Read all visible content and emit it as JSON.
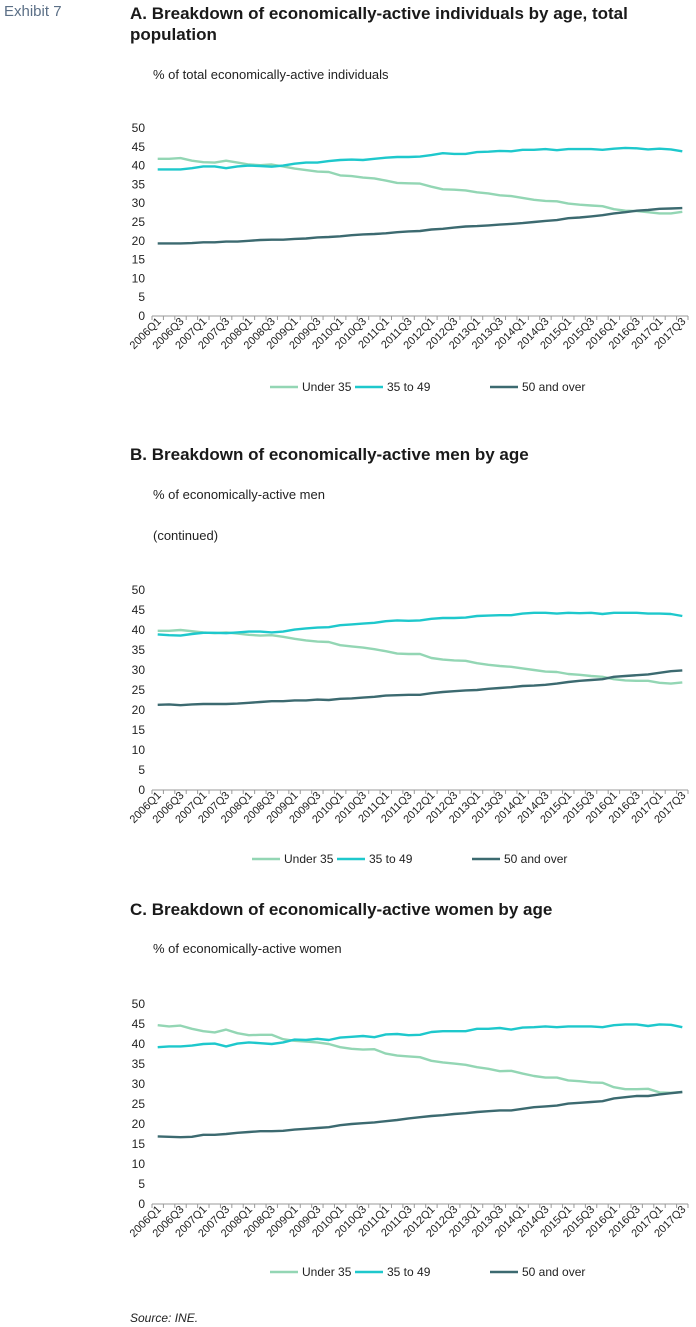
{
  "exhibit_label": "Exhibit 7",
  "source": "Source: INE.",
  "colors": {
    "under35": "#93d6b4",
    "age35_49": "#1ec8cc",
    "over50": "#3c6a70",
    "axis": "#999999"
  },
  "panels": [
    {
      "title_line1": "A. Breakdown of economically-active individuals by age, total",
      "title_line2": "population",
      "subtitle": "% of total economically-active individuals",
      "note": ""
    },
    {
      "title_line1": "B. Breakdown of economically-active men by age",
      "title_line2": "",
      "subtitle": "% of economically-active men",
      "note": "(continued)"
    },
    {
      "title_line1": "C. Breakdown of economically-active women by age",
      "title_line2": "",
      "subtitle": "% of economically-active women",
      "note": ""
    }
  ],
  "chart_data": [
    {
      "type": "line",
      "title": "A. Breakdown of economically-active individuals by age, total population",
      "ylabel": "% of total economically-active individuals",
      "ylim": [
        0,
        50
      ],
      "yticks": [
        0,
        5,
        10,
        15,
        20,
        25,
        30,
        35,
        40,
        45,
        50
      ],
      "x": [
        "2006Q1",
        "2006Q2",
        "2006Q3",
        "2006Q4",
        "2007Q1",
        "2007Q2",
        "2007Q3",
        "2007Q4",
        "2008Q1",
        "2008Q2",
        "2008Q3",
        "2008Q4",
        "2009Q1",
        "2009Q2",
        "2009Q3",
        "2009Q4",
        "2010Q1",
        "2010Q2",
        "2010Q3",
        "2010Q4",
        "2011Q1",
        "2011Q2",
        "2011Q3",
        "2011Q4",
        "2012Q1",
        "2012Q2",
        "2012Q3",
        "2012Q4",
        "2013Q1",
        "2013Q2",
        "2013Q3",
        "2013Q4",
        "2014Q1",
        "2014Q2",
        "2014Q3",
        "2014Q4",
        "2015Q1",
        "2015Q2",
        "2015Q3",
        "2015Q4",
        "2016Q1",
        "2016Q2",
        "2016Q3",
        "2016Q4",
        "2017Q1",
        "2017Q2",
        "2017Q3"
      ],
      "xticklabels": [
        "2006Q1",
        "2006Q3",
        "2007Q1",
        "2007Q3",
        "2008Q1",
        "2008Q3",
        "2009Q1",
        "2009Q3",
        "2010Q1",
        "2010Q3",
        "2011Q1",
        "2011Q3",
        "2012Q1",
        "2012Q3",
        "2013Q1",
        "2013Q3",
        "2014Q1",
        "2014Q3",
        "2015Q1",
        "2015Q3",
        "2016Q1",
        "2016Q3",
        "2017Q1",
        "2017Q3"
      ],
      "legend_position": "bottom",
      "series": [
        {
          "name": "Under 35",
          "color": "#93d6b4",
          "values": [
            41.8,
            41.8,
            42.0,
            41.3,
            40.9,
            40.8,
            41.3,
            40.8,
            40.3,
            40.1,
            40.3,
            39.8,
            39.2,
            38.8,
            38.4,
            38.3,
            37.4,
            37.2,
            36.8,
            36.6,
            36.0,
            35.4,
            35.3,
            35.2,
            34.4,
            33.7,
            33.6,
            33.4,
            32.9,
            32.6,
            32.1,
            31.9,
            31.4,
            30.9,
            30.6,
            30.5,
            29.9,
            29.6,
            29.4,
            29.2,
            28.4,
            28.0,
            27.9,
            27.6,
            27.3,
            27.3,
            27.7
          ]
        },
        {
          "name": "35 to 49",
          "color": "#1ec8cc",
          "values": [
            39.0,
            39.0,
            39.0,
            39.3,
            39.8,
            39.8,
            39.3,
            39.8,
            40.0,
            39.9,
            39.7,
            40.0,
            40.5,
            40.8,
            40.8,
            41.2,
            41.5,
            41.6,
            41.5,
            41.8,
            42.1,
            42.3,
            42.3,
            42.4,
            42.8,
            43.3,
            43.1,
            43.1,
            43.6,
            43.7,
            43.9,
            43.8,
            44.2,
            44.2,
            44.4,
            44.1,
            44.4,
            44.4,
            44.4,
            44.2,
            44.5,
            44.7,
            44.6,
            44.3,
            44.5,
            44.3,
            43.8
          ]
        },
        {
          "name": "50 and over",
          "color": "#3c6a70",
          "values": [
            19.3,
            19.3,
            19.3,
            19.4,
            19.6,
            19.6,
            19.8,
            19.8,
            20.0,
            20.2,
            20.3,
            20.3,
            20.5,
            20.6,
            20.9,
            21.0,
            21.2,
            21.5,
            21.7,
            21.8,
            22.0,
            22.3,
            22.5,
            22.6,
            23.0,
            23.2,
            23.5,
            23.8,
            23.9,
            24.1,
            24.3,
            24.5,
            24.7,
            25.0,
            25.3,
            25.5,
            26.0,
            26.2,
            26.5,
            26.8,
            27.3,
            27.6,
            28.0,
            28.2,
            28.5,
            28.6,
            28.7
          ]
        }
      ]
    },
    {
      "type": "line",
      "title": "B. Breakdown of economically-active men by age",
      "ylabel": "% of economically-active men",
      "ylim": [
        0,
        50
      ],
      "yticks": [
        0,
        5,
        10,
        15,
        20,
        25,
        30,
        35,
        40,
        45,
        50
      ],
      "x": [
        "2006Q1",
        "2006Q2",
        "2006Q3",
        "2006Q4",
        "2007Q1",
        "2007Q2",
        "2007Q3",
        "2007Q4",
        "2008Q1",
        "2008Q2",
        "2008Q3",
        "2008Q4",
        "2009Q1",
        "2009Q2",
        "2009Q3",
        "2009Q4",
        "2010Q1",
        "2010Q2",
        "2010Q3",
        "2010Q4",
        "2011Q1",
        "2011Q2",
        "2011Q3",
        "2011Q4",
        "2012Q1",
        "2012Q2",
        "2012Q3",
        "2012Q4",
        "2013Q1",
        "2013Q2",
        "2013Q3",
        "2013Q4",
        "2014Q1",
        "2014Q2",
        "2014Q3",
        "2014Q4",
        "2015Q1",
        "2015Q2",
        "2015Q3",
        "2015Q4",
        "2016Q1",
        "2016Q2",
        "2016Q3",
        "2016Q4",
        "2017Q1",
        "2017Q2",
        "2017Q3"
      ],
      "xticklabels": [
        "2006Q1",
        "2006Q3",
        "2007Q1",
        "2007Q3",
        "2008Q1",
        "2008Q3",
        "2009Q1",
        "2009Q3",
        "2010Q1",
        "2010Q3",
        "2011Q1",
        "2011Q3",
        "2012Q1",
        "2012Q3",
        "2013Q1",
        "2013Q3",
        "2014Q1",
        "2014Q3",
        "2015Q1",
        "2015Q3",
        "2016Q1",
        "2016Q3",
        "2017Q1",
        "2017Q3"
      ],
      "legend_position": "bottom",
      "series": [
        {
          "name": "Under 35",
          "color": "#93d6b4",
          "values": [
            39.8,
            39.8,
            40.0,
            39.7,
            39.4,
            39.2,
            39.4,
            39.1,
            38.8,
            38.6,
            38.7,
            38.3,
            37.8,
            37.4,
            37.1,
            37.0,
            36.2,
            35.9,
            35.6,
            35.2,
            34.7,
            34.1,
            34.0,
            34.0,
            33.0,
            32.6,
            32.4,
            32.3,
            31.7,
            31.3,
            31.0,
            30.8,
            30.4,
            30.0,
            29.6,
            29.5,
            29.0,
            28.8,
            28.5,
            28.3,
            27.7,
            27.4,
            27.3,
            27.3,
            26.8,
            26.6,
            26.9
          ]
        },
        {
          "name": "35 to 49",
          "color": "#1ec8cc",
          "values": [
            38.9,
            38.7,
            38.6,
            39.0,
            39.3,
            39.3,
            39.2,
            39.4,
            39.6,
            39.6,
            39.4,
            39.6,
            40.1,
            40.4,
            40.6,
            40.7,
            41.2,
            41.4,
            41.6,
            41.8,
            42.2,
            42.4,
            42.3,
            42.4,
            42.8,
            43.0,
            43.0,
            43.1,
            43.5,
            43.6,
            43.7,
            43.7,
            44.1,
            44.3,
            44.3,
            44.1,
            44.3,
            44.2,
            44.3,
            44.0,
            44.3,
            44.3,
            44.3,
            44.1,
            44.1,
            44.0,
            43.5
          ]
        },
        {
          "name": "50 and over",
          "color": "#3c6a70",
          "values": [
            21.3,
            21.4,
            21.2,
            21.4,
            21.5,
            21.5,
            21.5,
            21.6,
            21.8,
            22.0,
            22.2,
            22.2,
            22.4,
            22.4,
            22.6,
            22.5,
            22.8,
            22.9,
            23.1,
            23.3,
            23.6,
            23.7,
            23.8,
            23.8,
            24.2,
            24.5,
            24.7,
            24.9,
            25.0,
            25.3,
            25.5,
            25.7,
            26.0,
            26.1,
            26.3,
            26.6,
            27.0,
            27.3,
            27.5,
            27.7,
            28.3,
            28.5,
            28.7,
            28.9,
            29.3,
            29.7,
            29.9
          ]
        }
      ]
    },
    {
      "type": "line",
      "title": "C. Breakdown of economically-active women by age",
      "ylabel": "% of economically-active women",
      "ylim": [
        0,
        50
      ],
      "yticks": [
        0,
        5,
        10,
        15,
        20,
        25,
        30,
        35,
        40,
        45,
        50
      ],
      "x": [
        "2006Q1",
        "2006Q2",
        "2006Q3",
        "2006Q4",
        "2007Q1",
        "2007Q2",
        "2007Q3",
        "2007Q4",
        "2008Q1",
        "2008Q2",
        "2008Q3",
        "2008Q4",
        "2009Q1",
        "2009Q2",
        "2009Q3",
        "2009Q4",
        "2010Q1",
        "2010Q2",
        "2010Q3",
        "2010Q4",
        "2011Q1",
        "2011Q2",
        "2011Q3",
        "2011Q4",
        "2012Q1",
        "2012Q2",
        "2012Q3",
        "2012Q4",
        "2013Q1",
        "2013Q2",
        "2013Q3",
        "2013Q4",
        "2014Q1",
        "2014Q2",
        "2014Q3",
        "2014Q4",
        "2015Q1",
        "2015Q2",
        "2015Q3",
        "2015Q4",
        "2016Q1",
        "2016Q2",
        "2016Q3",
        "2016Q4",
        "2017Q1",
        "2017Q2",
        "2017Q3"
      ],
      "xticklabels": [
        "2006Q1",
        "2006Q3",
        "2007Q1",
        "2007Q3",
        "2008Q1",
        "2008Q3",
        "2009Q1",
        "2009Q3",
        "2010Q1",
        "2010Q3",
        "2011Q1",
        "2011Q3",
        "2012Q1",
        "2012Q3",
        "2013Q1",
        "2013Q3",
        "2014Q1",
        "2014Q3",
        "2015Q1",
        "2015Q3",
        "2016Q1",
        "2016Q3",
        "2017Q1",
        "2017Q3"
      ],
      "legend_position": "bottom",
      "series": [
        {
          "name": "Under 35",
          "color": "#93d6b4",
          "values": [
            44.7,
            44.4,
            44.6,
            43.8,
            43.2,
            42.9,
            43.6,
            42.7,
            42.2,
            42.3,
            42.3,
            41.2,
            40.8,
            40.6,
            40.4,
            40.0,
            39.2,
            38.8,
            38.6,
            38.7,
            37.6,
            37.1,
            36.9,
            36.7,
            35.8,
            35.4,
            35.1,
            34.8,
            34.2,
            33.8,
            33.2,
            33.3,
            32.6,
            32.0,
            31.6,
            31.6,
            30.9,
            30.7,
            30.4,
            30.3,
            29.2,
            28.7,
            28.7,
            28.8,
            27.9,
            27.8,
            28.0
          ]
        },
        {
          "name": "35 to 49",
          "color": "#1ec8cc",
          "values": [
            39.2,
            39.4,
            39.4,
            39.6,
            40.0,
            40.1,
            39.4,
            40.1,
            40.4,
            40.2,
            40.0,
            40.4,
            41.1,
            41.0,
            41.3,
            41.0,
            41.6,
            41.8,
            42.0,
            41.7,
            42.4,
            42.5,
            42.2,
            42.3,
            43.0,
            43.2,
            43.2,
            43.2,
            43.8,
            43.8,
            44.0,
            43.6,
            44.1,
            44.2,
            44.4,
            44.2,
            44.4,
            44.4,
            44.4,
            44.2,
            44.7,
            44.9,
            44.9,
            44.5,
            44.9,
            44.8,
            44.2
          ]
        },
        {
          "name": "50 and over",
          "color": "#3c6a70",
          "values": [
            16.9,
            16.8,
            16.7,
            16.8,
            17.3,
            17.3,
            17.5,
            17.8,
            18.0,
            18.2,
            18.2,
            18.3,
            18.6,
            18.8,
            19.0,
            19.2,
            19.7,
            20.0,
            20.2,
            20.4,
            20.7,
            21.0,
            21.4,
            21.7,
            22.0,
            22.2,
            22.5,
            22.7,
            23.0,
            23.2,
            23.4,
            23.4,
            23.8,
            24.2,
            24.4,
            24.6,
            25.1,
            25.3,
            25.5,
            25.7,
            26.4,
            26.7,
            27.0,
            27.0,
            27.4,
            27.7,
            28.0
          ]
        }
      ]
    }
  ]
}
